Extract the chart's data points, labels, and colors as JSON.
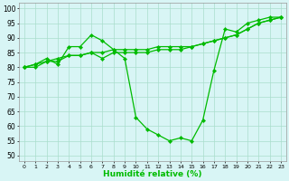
{
  "line1": [
    80,
    81,
    83,
    81,
    87,
    87,
    91,
    89,
    86,
    83,
    63,
    59,
    57,
    55,
    56,
    55,
    62,
    79,
    93,
    92,
    95,
    96,
    97,
    97
  ],
  "line2": [
    80,
    81,
    82,
    83,
    84,
    84,
    85,
    85,
    86,
    86,
    86,
    86,
    87,
    87,
    87,
    87,
    88,
    89,
    90,
    91,
    93,
    95,
    96,
    97
  ],
  "line3": [
    80,
    80,
    82,
    82,
    84,
    84,
    85,
    83,
    85,
    85,
    85,
    85,
    86,
    86,
    86,
    87,
    88,
    89,
    90,
    91,
    93,
    95,
    96,
    97
  ],
  "x": [
    0,
    1,
    2,
    3,
    4,
    5,
    6,
    7,
    8,
    9,
    10,
    11,
    12,
    13,
    14,
    15,
    16,
    17,
    18,
    19,
    20,
    21,
    22,
    23
  ],
  "xlim": [
    -0.5,
    23.5
  ],
  "ylim": [
    48,
    102
  ],
  "yticks": [
    50,
    55,
    60,
    65,
    70,
    75,
    80,
    85,
    90,
    95,
    100
  ],
  "xtick_labels": [
    "0",
    "1",
    "2",
    "3",
    "4",
    "5",
    "6",
    "7",
    "8",
    "9",
    "10",
    "11",
    "12",
    "13",
    "14",
    "15",
    "16",
    "17",
    "18",
    "19",
    "20",
    "21",
    "22",
    "23"
  ],
  "xlabel": "Humidité relative (%)",
  "line_color": "#00bb00",
  "bg_color": "#d8f5f5",
  "grid_color": "#aaddcc",
  "marker": "D",
  "marker_size": 2.2,
  "linewidth": 0.9
}
